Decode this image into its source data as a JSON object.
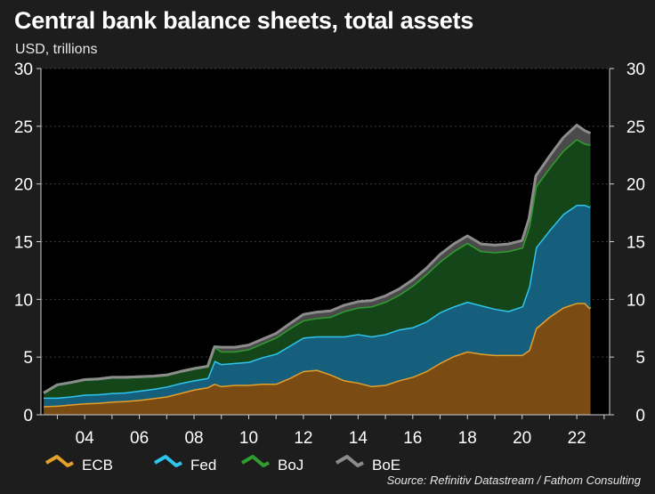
{
  "title": "Central bank balance sheets, total assets",
  "subtitle": "USD, trillions",
  "source": "Source: Refinitiv Datastream / Fathom Consulting",
  "chart_data": {
    "type": "area",
    "stacked": true,
    "x": [
      2002.5,
      2003.0,
      2003.5,
      2004.0,
      2004.5,
      2005.0,
      2005.5,
      2006.0,
      2006.5,
      2007.0,
      2007.5,
      2008.0,
      2008.5,
      2008.75,
      2009.0,
      2009.5,
      2010.0,
      2010.5,
      2011.0,
      2011.5,
      2012.0,
      2012.5,
      2013.0,
      2013.5,
      2014.0,
      2014.5,
      2015.0,
      2015.5,
      2016.0,
      2016.5,
      2017.0,
      2017.5,
      2018.0,
      2018.5,
      2019.0,
      2019.5,
      2020.0,
      2020.25,
      2020.5,
      2021.0,
      2021.5,
      2022.0,
      2022.3,
      2022.5
    ],
    "series": [
      {
        "name": "ECB",
        "color": "#e3a02a",
        "fill": "#7a4b12",
        "values": [
          0.75,
          0.8,
          0.9,
          1.0,
          1.05,
          1.15,
          1.2,
          1.3,
          1.45,
          1.6,
          1.9,
          2.2,
          2.4,
          2.7,
          2.5,
          2.6,
          2.6,
          2.7,
          2.7,
          3.2,
          3.8,
          3.9,
          3.5,
          3.0,
          2.8,
          2.5,
          2.6,
          3.0,
          3.3,
          3.8,
          4.5,
          5.1,
          5.5,
          5.3,
          5.2,
          5.2,
          5.2,
          5.6,
          7.5,
          8.5,
          9.3,
          9.7,
          9.7,
          9.2
        ]
      },
      {
        "name": "Fed",
        "color": "#2ec6ee",
        "fill": "#165f7c",
        "values": [
          0.75,
          0.7,
          0.7,
          0.75,
          0.75,
          0.75,
          0.75,
          0.8,
          0.8,
          0.85,
          0.85,
          0.8,
          0.8,
          2.0,
          1.9,
          1.9,
          2.0,
          2.3,
          2.6,
          2.8,
          2.9,
          2.9,
          3.3,
          3.8,
          4.2,
          4.3,
          4.4,
          4.4,
          4.3,
          4.3,
          4.4,
          4.3,
          4.3,
          4.2,
          4.0,
          3.8,
          4.2,
          5.5,
          7.0,
          7.5,
          8.1,
          8.5,
          8.5,
          8.8
        ]
      },
      {
        "name": "BoJ",
        "color": "#2f9e2f",
        "fill": "#14461a",
        "values": [
          0.4,
          1.1,
          1.2,
          1.3,
          1.3,
          1.35,
          1.3,
          1.2,
          1.1,
          1.0,
          1.0,
          1.0,
          1.0,
          1.2,
          1.1,
          1.0,
          1.1,
          1.2,
          1.4,
          1.5,
          1.5,
          1.6,
          1.7,
          2.2,
          2.3,
          2.6,
          2.8,
          3.0,
          3.6,
          4.1,
          4.4,
          4.8,
          5.1,
          4.7,
          4.9,
          5.2,
          5.1,
          5.2,
          5.3,
          5.4,
          5.5,
          5.7,
          5.3,
          5.4
        ]
      },
      {
        "name": "BoE",
        "color": "#8c8c8c",
        "fill": "#4a4a4a",
        "values": [
          0.0,
          0.0,
          0.0,
          0.0,
          0.0,
          0.0,
          0.0,
          0.0,
          0.0,
          0.0,
          0.0,
          0.0,
          0.0,
          0.0,
          0.35,
          0.35,
          0.35,
          0.35,
          0.35,
          0.4,
          0.5,
          0.5,
          0.5,
          0.5,
          0.5,
          0.5,
          0.5,
          0.5,
          0.5,
          0.5,
          0.6,
          0.6,
          0.6,
          0.6,
          0.6,
          0.6,
          0.6,
          0.7,
          0.9,
          1.0,
          1.1,
          1.2,
          1.1,
          1.0
        ]
      }
    ],
    "xlim": [
      2002.4,
      2023.2
    ],
    "ylim": [
      0,
      30
    ],
    "y_ticks": [
      0,
      5,
      10,
      15,
      20,
      25,
      30
    ],
    "x_ticks": [
      2004,
      2006,
      2008,
      2010,
      2012,
      2014,
      2016,
      2018,
      2020,
      2022
    ],
    "x_tick_labels": [
      "04",
      "06",
      "08",
      "10",
      "12",
      "14",
      "16",
      "18",
      "20",
      "22"
    ],
    "y_axis_right": true,
    "grid": true,
    "legend_position": "bottom-left"
  },
  "colors": {
    "background": "#1d1d1d",
    "plot_background": "#000000",
    "grid": "#3a3a3a"
  }
}
